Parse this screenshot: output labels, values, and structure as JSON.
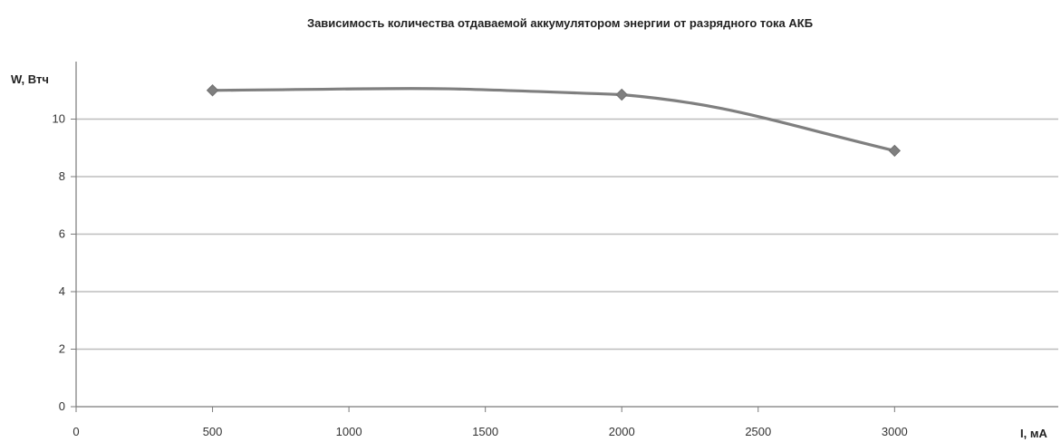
{
  "chart_data": {
    "type": "line",
    "title": "Зависимость  количества  отдаваемой  аккумулятором  энергии от разрядного тока  АКБ",
    "ylabel": "W, Втч",
    "xlabel": "I, мА",
    "xlim": [
      0,
      3600
    ],
    "ylim": [
      0,
      12
    ],
    "x_ticks": [
      0,
      500,
      1000,
      1500,
      2000,
      2500,
      3000
    ],
    "y_ticks": [
      0,
      2,
      4,
      6,
      8,
      10
    ],
    "grid": true,
    "legend": "none",
    "line_color": "#7f7f7f",
    "grid_color": "#bdbdbd",
    "series": [
      {
        "x": [
          500,
          2000,
          3000
        ],
        "values": [
          11.0,
          10.85,
          8.9
        ]
      }
    ]
  }
}
